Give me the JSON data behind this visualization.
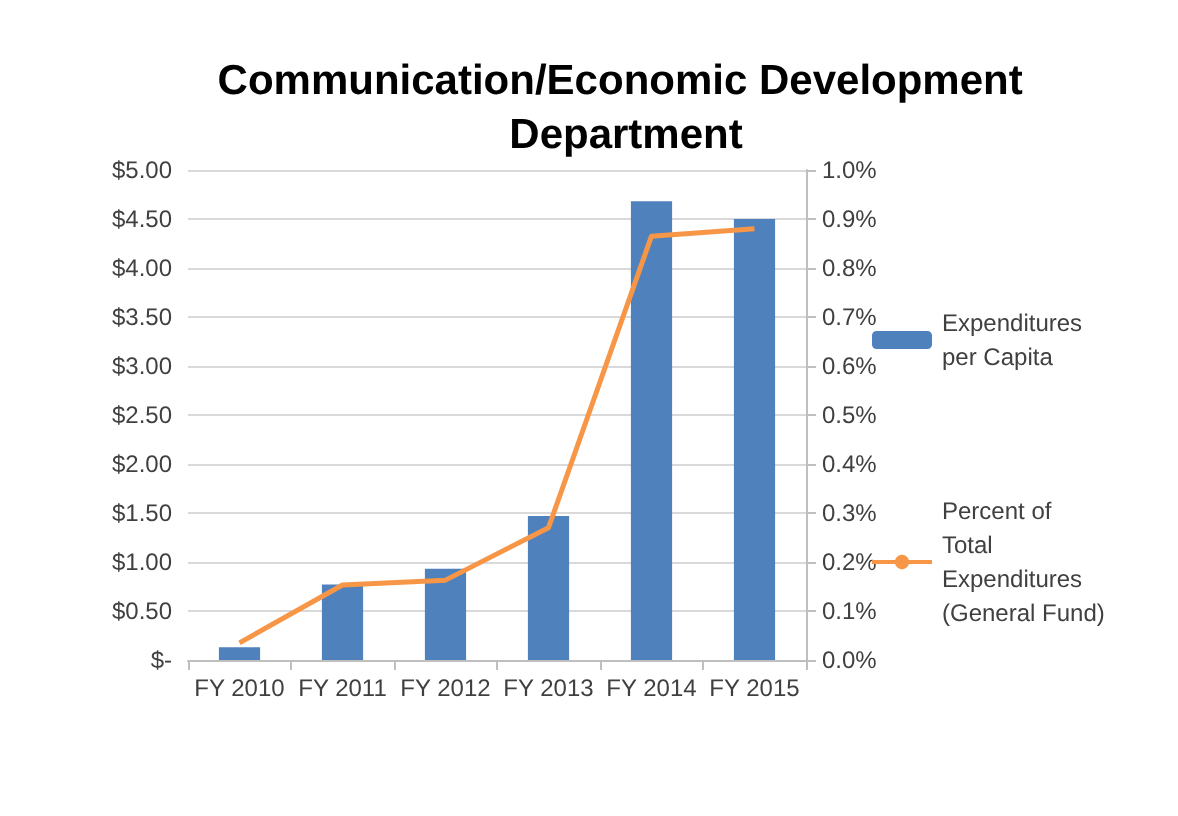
{
  "chart_data": {
    "type": "bar",
    "title": "Communication/Economic Development Department",
    "categories": [
      "FY 2010",
      "FY 2011",
      "FY 2012",
      "FY 2013",
      "FY 2014",
      "FY 2015"
    ],
    "series": [
      {
        "name": "Expenditures per Capita",
        "color": "#4f81bd",
        "values": [
          0.13,
          0.77,
          0.93,
          1.47,
          4.68,
          4.5
        ]
      },
      {
        "name": "Percent of Total Expenditures (General Fund)",
        "type": "line",
        "axis": "y2",
        "color": "#f79646",
        "values": [
          0.035,
          0.153,
          0.163,
          0.27,
          0.865,
          0.88
        ]
      }
    ],
    "ylim": [
      0,
      5
    ],
    "yticks": [
      {
        "value": 0,
        "label": "$-"
      },
      {
        "value": 0.5,
        "label": "$0.50"
      },
      {
        "value": 1,
        "label": "$1.00"
      },
      {
        "value": 1.5,
        "label": "$1.50"
      },
      {
        "value": 2,
        "label": "$2.00"
      },
      {
        "value": 2.5,
        "label": "$2.50"
      },
      {
        "value": 3,
        "label": "$3.00"
      },
      {
        "value": 3.5,
        "label": "$3.50"
      },
      {
        "value": 4,
        "label": "$4.00"
      },
      {
        "value": 4.5,
        "label": "$4.50"
      },
      {
        "value": 5,
        "label": "$5.00"
      }
    ],
    "y2lim": [
      0,
      1
    ],
    "y2ticks": [
      {
        "value": 0,
        "label": "0.0%"
      },
      {
        "value": 0.1,
        "label": "0.1%"
      },
      {
        "value": 0.2,
        "label": "0.2%"
      },
      {
        "value": 0.3,
        "label": "0.3%"
      },
      {
        "value": 0.4,
        "label": "0.4%"
      },
      {
        "value": 0.5,
        "label": "0.5%"
      },
      {
        "value": 0.6,
        "label": "0.6%"
      },
      {
        "value": 0.7,
        "label": "0.7%"
      },
      {
        "value": 0.8,
        "label": "0.8%"
      },
      {
        "value": 0.9,
        "label": "0.9%"
      },
      {
        "value": 1,
        "label": "1.0%"
      }
    ],
    "grid": "y",
    "legend": "right",
    "marker": "none"
  }
}
